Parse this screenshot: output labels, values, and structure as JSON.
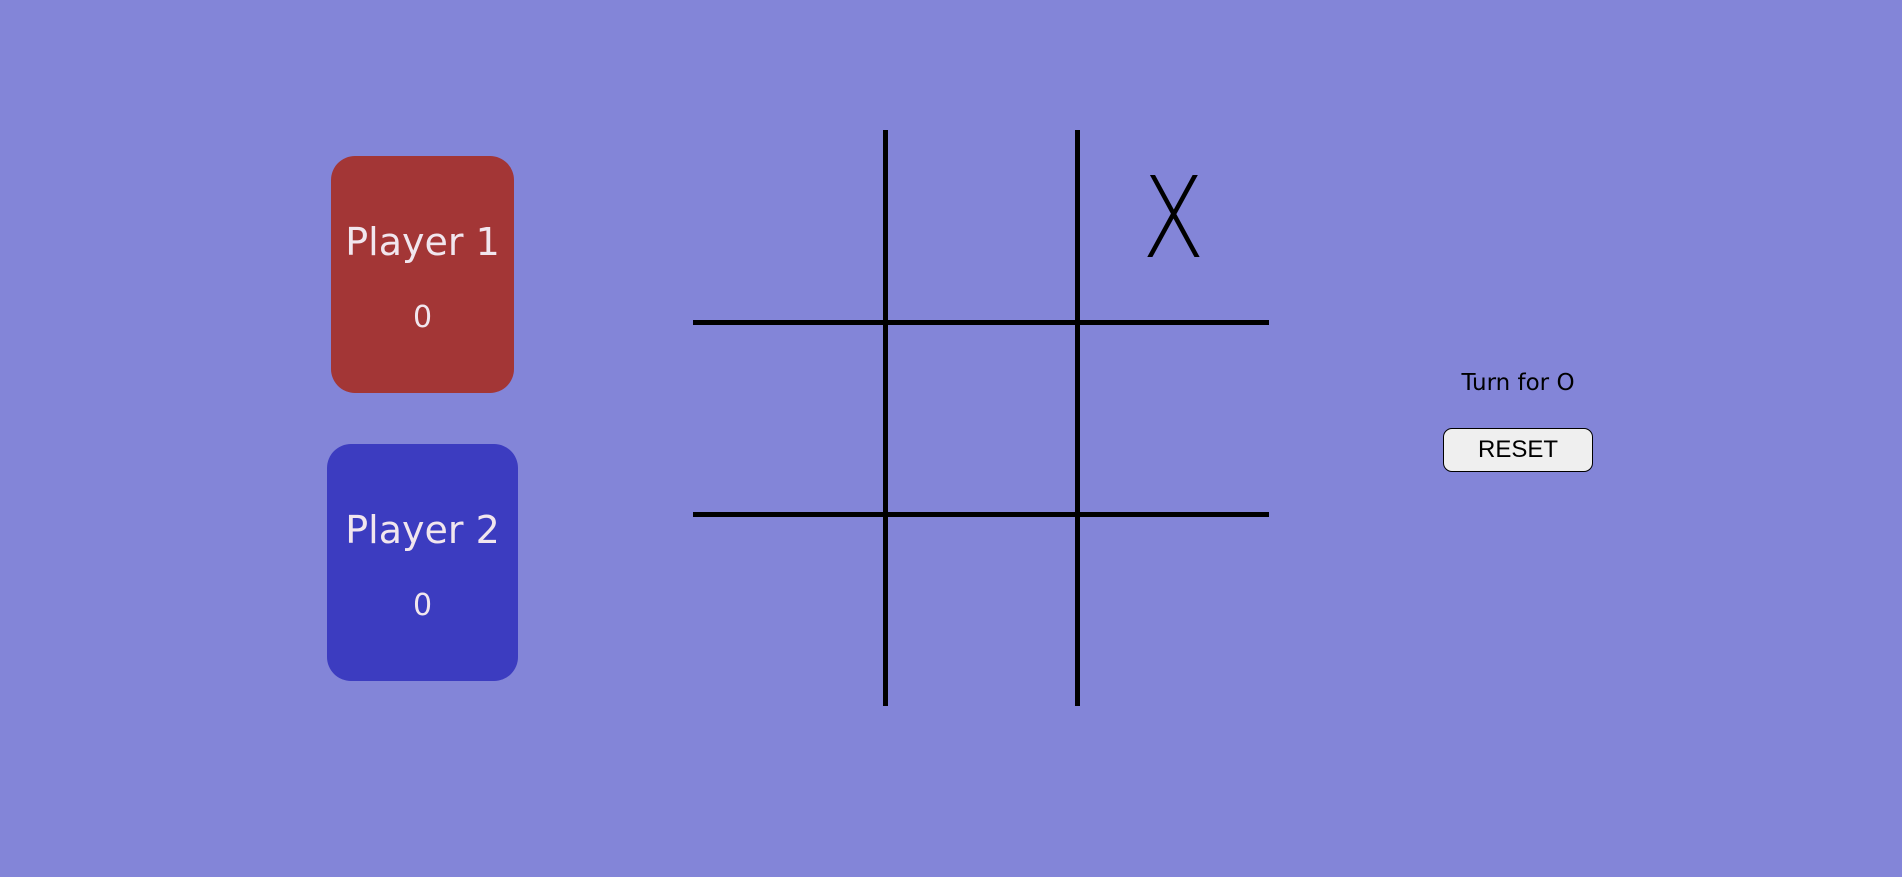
{
  "players": [
    {
      "name": "Player 1",
      "score": "0",
      "color": "#a33636"
    },
    {
      "name": "Player 2",
      "score": "0",
      "color": "#3c3cc0"
    }
  ],
  "board": {
    "cells": [
      "",
      "",
      "X",
      "",
      "",
      "",
      "",
      "",
      ""
    ]
  },
  "status": {
    "turn_text": "Turn for O"
  },
  "controls": {
    "reset_label": "RESET"
  },
  "theme": {
    "background": "#8385d8",
    "line_color": "#000000",
    "text_color": "#f1e6ee"
  }
}
